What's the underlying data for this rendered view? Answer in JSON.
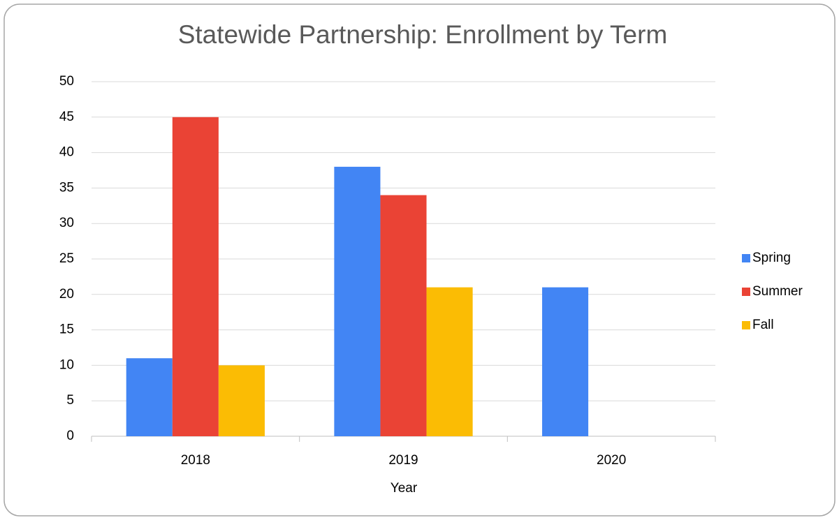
{
  "chart_data": {
    "type": "bar",
    "title": "Statewide Partnership: Enrollment by Term",
    "x_label": "Year",
    "categories": [
      "2018",
      "2019",
      "2020"
    ],
    "series": [
      {
        "name": "Spring",
        "color": "#4285f4",
        "values": [
          11,
          38,
          21
        ]
      },
      {
        "name": "Summer",
        "color": "#ea4335",
        "values": [
          45,
          34,
          null
        ]
      },
      {
        "name": "Fall",
        "color": "#fbbc04",
        "values": [
          10,
          21,
          null
        ]
      }
    ],
    "ylim": [
      0,
      50
    ],
    "yticks": [
      0,
      5,
      10,
      15,
      20,
      25,
      30,
      35,
      40,
      45,
      50
    ],
    "grid": true,
    "legend": "right"
  }
}
